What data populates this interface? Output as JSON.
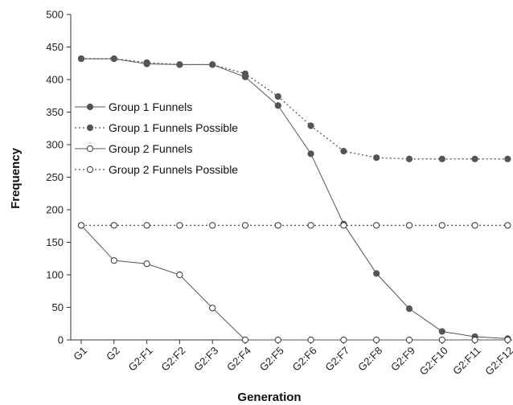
{
  "chart_data": {
    "type": "line",
    "xlabel": "Generation",
    "ylabel": "Frequency",
    "ylim": [
      0,
      500
    ],
    "yticks": [
      "0",
      "50",
      "100",
      "150",
      "200",
      "250",
      "300",
      "350",
      "400",
      "450",
      "500"
    ],
    "categories": [
      "G1",
      "G2",
      "G2:F1",
      "G2:F2",
      "G2:F3",
      "G2:F4",
      "G2:F5",
      "G2:F6",
      "G2:F7",
      "G2:F8",
      "G2:F9",
      "G2:F10",
      "G2:F11",
      "G2:F12"
    ],
    "legend_position": "left",
    "grid": false,
    "series": [
      {
        "name": "Group 1 Funnels",
        "style": "solid",
        "marker": "filled",
        "color": "#555555",
        "values": [
          432,
          432,
          424,
          423,
          423,
          404,
          360,
          286,
          178,
          102,
          48,
          13,
          5,
          2
        ]
      },
      {
        "name": "Group 1 Funnels Possible",
        "style": "dotted",
        "marker": "filled",
        "color": "#555555",
        "values": [
          432,
          432,
          426,
          423,
          423,
          409,
          374,
          329,
          290,
          280,
          278,
          278,
          278,
          278
        ]
      },
      {
        "name": "Group 2 Funnels",
        "style": "solid",
        "marker": "open",
        "color": "#555555",
        "values": [
          176,
          122,
          117,
          100,
          49,
          0,
          0,
          0,
          0,
          0,
          0,
          0,
          0,
          0
        ]
      },
      {
        "name": "Group 2 Funnels Possible",
        "style": "dotted",
        "marker": "open",
        "color": "#555555",
        "values": [
          176,
          176,
          176,
          176,
          176,
          176,
          176,
          176,
          176,
          176,
          176,
          176,
          176,
          176
        ]
      }
    ]
  }
}
